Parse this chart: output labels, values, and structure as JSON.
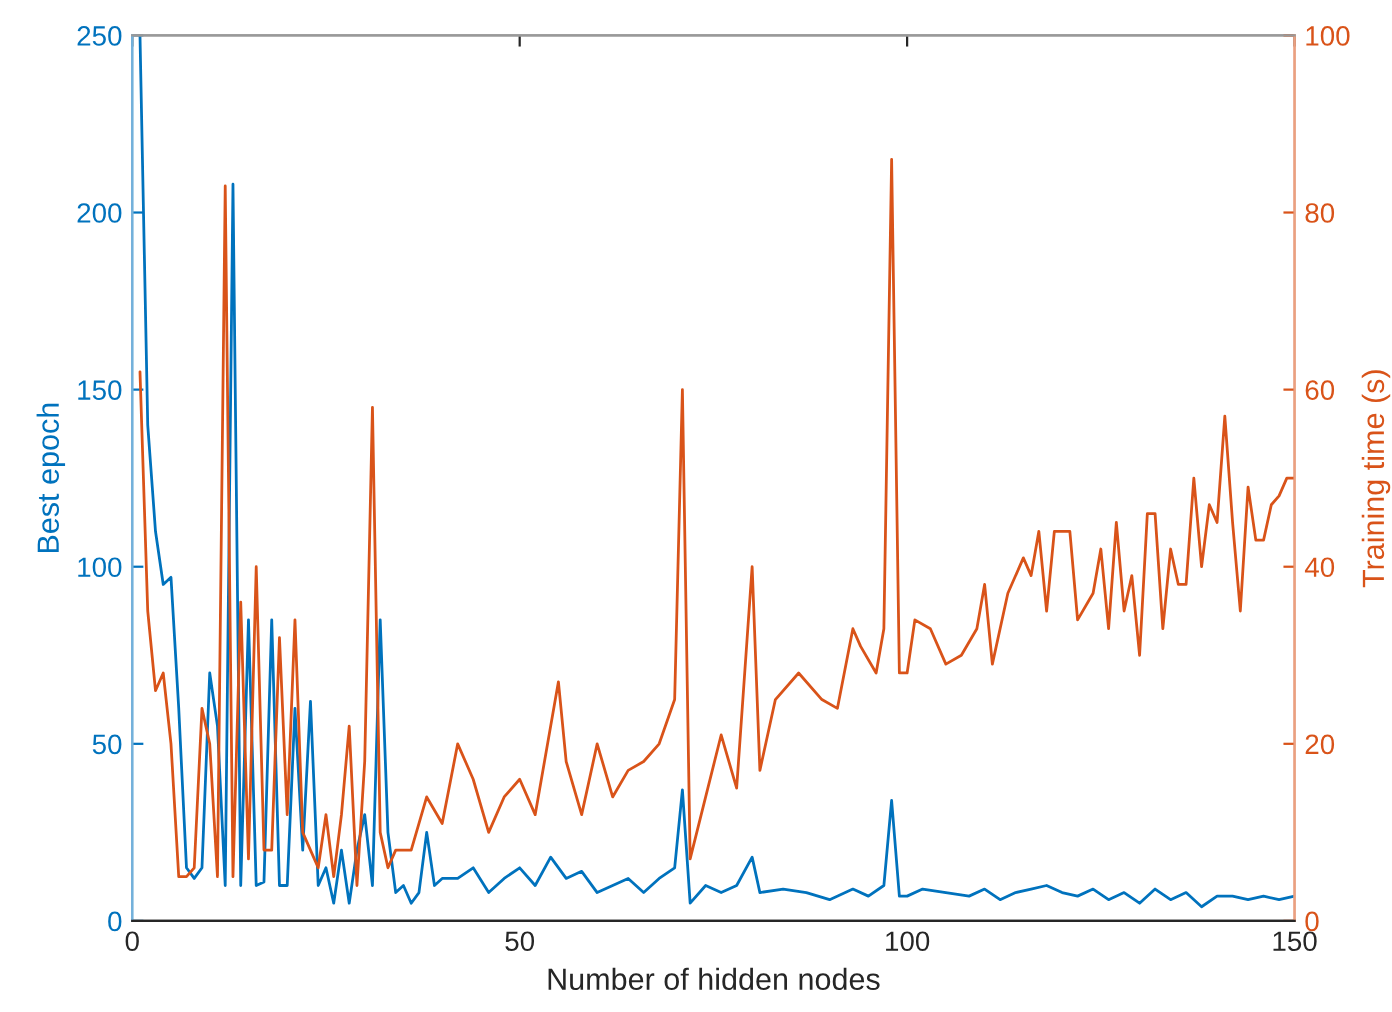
{
  "chart_data": {
    "type": "line",
    "xlabel": "Number of hidden nodes",
    "ylabel": "Best epoch",
    "y2label": "Training time (s)",
    "xlim": [
      0,
      150
    ],
    "xticks": [
      0,
      50,
      100,
      150
    ],
    "ylim": [
      0,
      250
    ],
    "yticks": [
      0,
      50,
      100,
      150,
      200,
      250
    ],
    "y2lim": [
      0,
      100
    ],
    "y2ticks": [
      0,
      20,
      40,
      60,
      80,
      100
    ],
    "grid": false,
    "series": [
      {
        "color": "#0072bd",
        "x": [
          1,
          2,
          3,
          4,
          5,
          6,
          7,
          8,
          9,
          10,
          11,
          12,
          13,
          14,
          15,
          16,
          17,
          18,
          19,
          20,
          21,
          22,
          23,
          24,
          25,
          26,
          27,
          28,
          29,
          30,
          31,
          32,
          33,
          34,
          35,
          36,
          37,
          38,
          39,
          40,
          42,
          44,
          46,
          48,
          50,
          52,
          54,
          56,
          58,
          60,
          62,
          64,
          66,
          68,
          70,
          71,
          72,
          74,
          76,
          78,
          80,
          81,
          84,
          87,
          90,
          93,
          95,
          97,
          98,
          99,
          100,
          102,
          105,
          108,
          110,
          112,
          114,
          116,
          118,
          120,
          122,
          124,
          126,
          128,
          130,
          132,
          134,
          136,
          138,
          140,
          142,
          144,
          146,
          148,
          150
        ],
        "values": [
          250,
          140,
          110,
          95,
          97,
          60,
          15,
          12,
          15,
          70,
          55,
          10,
          208,
          10,
          85,
          10,
          11,
          85,
          10,
          10,
          60,
          20,
          62,
          10,
          15,
          5,
          20,
          5,
          20,
          30,
          10,
          85,
          25,
          8,
          10,
          5,
          8,
          25,
          10,
          12,
          12,
          15,
          8,
          12,
          15,
          10,
          18,
          12,
          14,
          8,
          10,
          12,
          8,
          12,
          15,
          37,
          5,
          10,
          8,
          10,
          18,
          8,
          9,
          8,
          6,
          9,
          7,
          10,
          34,
          7,
          7,
          9,
          8,
          7,
          9,
          6,
          8,
          9,
          10,
          8,
          7,
          9,
          6,
          8,
          5,
          9,
          6,
          8,
          4,
          7,
          7,
          6,
          7,
          6,
          7
        ]
      },
      {
        "color": "#d95319",
        "axis": "y2",
        "x": [
          1,
          2,
          3,
          4,
          5,
          6,
          7,
          8,
          9,
          10,
          11,
          12,
          13,
          14,
          15,
          16,
          17,
          18,
          19,
          20,
          21,
          22,
          23,
          24,
          25,
          26,
          27,
          28,
          29,
          30,
          31,
          32,
          33,
          34,
          36,
          38,
          40,
          42,
          44,
          46,
          48,
          50,
          52,
          54,
          55,
          56,
          58,
          60,
          62,
          64,
          66,
          68,
          70,
          71,
          72,
          74,
          76,
          78,
          80,
          81,
          83,
          86,
          89,
          91,
          93,
          94,
          96,
          97,
          98,
          99,
          100,
          101,
          103,
          105,
          107,
          109,
          110,
          111,
          113,
          115,
          116,
          117,
          118,
          119,
          121,
          122,
          124,
          125,
          126,
          127,
          128,
          129,
          130,
          131,
          132,
          133,
          134,
          135,
          136,
          137,
          138,
          139,
          140,
          141,
          142,
          143,
          144,
          145,
          146,
          147,
          148,
          149,
          150
        ],
        "values": [
          62,
          35,
          26,
          28,
          20,
          5,
          5,
          6,
          24,
          20,
          5,
          83,
          5,
          36,
          7,
          40,
          8,
          8,
          32,
          12,
          34,
          10,
          8,
          6,
          12,
          5,
          12,
          22,
          4,
          18,
          58,
          10,
          6,
          8,
          8,
          14,
          11,
          20,
          16,
          10,
          14,
          16,
          12,
          22,
          27,
          18,
          12,
          20,
          14,
          17,
          18,
          20,
          25,
          60,
          7,
          14,
          21,
          15,
          40,
          17,
          25,
          28,
          25,
          24,
          33,
          31,
          28,
          33,
          86,
          28,
          28,
          34,
          33,
          29,
          30,
          33,
          38,
          29,
          37,
          41,
          39,
          44,
          35,
          44,
          44,
          34,
          37,
          42,
          33,
          45,
          35,
          39,
          30,
          46,
          46,
          33,
          42,
          38,
          38,
          50,
          40,
          47,
          45,
          57,
          45,
          35,
          49,
          43,
          43,
          47,
          48,
          50,
          50
        ]
      }
    ]
  }
}
